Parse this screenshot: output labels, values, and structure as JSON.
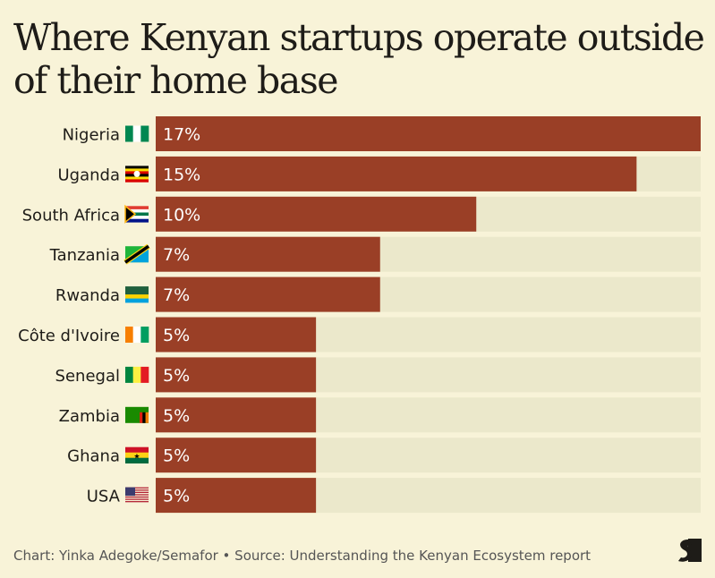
{
  "chart_data": {
    "type": "bar",
    "orientation": "horizontal",
    "title": "Where Kenyan startups operate outside of their home base",
    "categories": [
      "Nigeria",
      "Uganda",
      "South Africa",
      "Tanzania",
      "Rwanda",
      "Côte d'Ivoire",
      "Senegal",
      "Zambia",
      "Ghana",
      "USA"
    ],
    "flags": [
      "nigeria-flag",
      "uganda-flag",
      "south-africa-flag",
      "tanzania-flag",
      "rwanda-flag",
      "cote-divoire-flag",
      "senegal-flag",
      "zambia-flag",
      "ghana-flag",
      "usa-flag"
    ],
    "values": [
      17,
      15,
      10,
      7,
      7,
      5,
      5,
      5,
      5,
      5
    ],
    "data_labels": [
      "17%",
      "15%",
      "10%",
      "7%",
      "7%",
      "5%",
      "5%",
      "5%",
      "5%",
      "5%"
    ],
    "xlim": [
      0,
      17
    ],
    "grid": false,
    "colors": {
      "bar": "#9a3f26",
      "track": "#ebe8cb",
      "background": "#f8f3d8"
    }
  },
  "footer": "Chart: Yinka Adegoke/Semafor • Source: Understanding the Kenyan Ecosystem report",
  "logo": "S"
}
